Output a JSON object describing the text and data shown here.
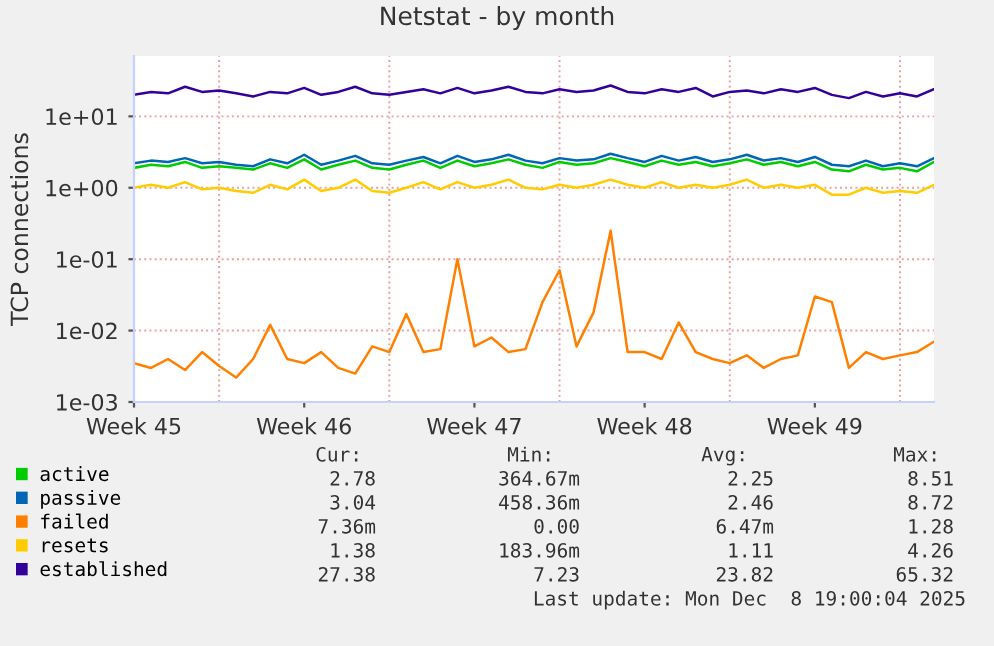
{
  "chart_data": {
    "type": "line",
    "title": "Netstat - by month",
    "ylabel": "TCP connections",
    "categories": [
      "Week 45",
      null,
      null,
      null,
      null,
      null,
      null,
      null,
      null,
      null,
      "Week 46",
      null,
      null,
      null,
      null,
      null,
      null,
      null,
      null,
      null,
      "Week 47",
      null,
      null,
      null,
      null,
      null,
      null,
      null,
      null,
      null,
      "Week 48",
      null,
      null,
      null,
      null,
      null,
      null,
      null,
      null,
      null,
      "Week 49",
      null,
      null,
      null,
      null,
      null,
      null,
      null
    ],
    "series": [
      {
        "name": "active",
        "color": "#00cc00",
        "values": [
          1.9,
          2.1,
          2.0,
          2.3,
          1.9,
          2.0,
          1.9,
          1.8,
          2.2,
          1.9,
          2.5,
          1.8,
          2.1,
          2.4,
          1.9,
          1.8,
          2.1,
          2.4,
          1.9,
          2.4,
          2.0,
          2.2,
          2.5,
          2.1,
          1.9,
          2.3,
          2.1,
          2.2,
          2.6,
          2.3,
          2.0,
          2.4,
          2.1,
          2.3,
          2.0,
          2.2,
          2.5,
          2.1,
          2.3,
          2.0,
          2.3,
          1.8,
          1.7,
          2.1,
          1.8,
          1.9,
          1.7,
          2.3
        ]
      },
      {
        "name": "passive",
        "color": "#0066b3",
        "values": [
          2.2,
          2.4,
          2.3,
          2.6,
          2.2,
          2.3,
          2.1,
          2.0,
          2.5,
          2.2,
          2.9,
          2.1,
          2.4,
          2.8,
          2.2,
          2.1,
          2.4,
          2.7,
          2.2,
          2.8,
          2.3,
          2.5,
          2.9,
          2.4,
          2.2,
          2.6,
          2.4,
          2.5,
          3.0,
          2.6,
          2.3,
          2.8,
          2.4,
          2.7,
          2.3,
          2.5,
          2.9,
          2.4,
          2.6,
          2.3,
          2.7,
          2.1,
          2.0,
          2.4,
          2.0,
          2.2,
          2.0,
          2.6
        ]
      },
      {
        "name": "failed",
        "color": "#ff8000",
        "values": [
          0.0035,
          0.003,
          0.004,
          0.0028,
          0.005,
          0.0032,
          0.0022,
          0.004,
          0.012,
          0.004,
          0.0035,
          0.005,
          0.003,
          0.0025,
          0.006,
          0.005,
          0.017,
          0.005,
          0.0055,
          0.1,
          0.006,
          0.008,
          0.005,
          0.0055,
          0.025,
          0.07,
          0.006,
          0.018,
          0.25,
          0.005,
          0.005,
          0.004,
          0.013,
          0.005,
          0.004,
          0.0035,
          0.0045,
          0.003,
          0.004,
          0.0045,
          0.03,
          0.025,
          0.003,
          0.005,
          0.004,
          0.0045,
          0.005,
          0.007
        ]
      },
      {
        "name": "resets",
        "color": "#ffcc00",
        "values": [
          1.0,
          1.1,
          1.0,
          1.2,
          0.95,
          1.0,
          0.9,
          0.85,
          1.1,
          0.95,
          1.3,
          0.9,
          1.0,
          1.3,
          0.9,
          0.85,
          1.0,
          1.2,
          0.95,
          1.2,
          1.0,
          1.1,
          1.3,
          1.0,
          0.95,
          1.1,
          1.0,
          1.1,
          1.3,
          1.1,
          1.0,
          1.2,
          1.0,
          1.1,
          1.0,
          1.1,
          1.3,
          1.0,
          1.1,
          1.0,
          1.1,
          0.8,
          0.8,
          1.0,
          0.85,
          0.9,
          0.85,
          1.1
        ]
      },
      {
        "name": "established",
        "color": "#330099",
        "values": [
          20,
          22,
          21,
          26,
          22,
          23,
          21,
          19,
          22,
          21,
          25,
          20,
          22,
          26,
          21,
          20,
          22,
          24,
          21,
          25,
          21,
          23,
          26,
          22,
          21,
          24,
          22,
          23,
          27,
          22,
          21,
          24,
          22,
          25,
          19,
          22,
          23,
          21,
          24,
          22,
          25,
          20,
          18,
          22,
          19,
          21,
          19,
          24
        ]
      }
    ],
    "log": true,
    "ylim": [
      0.001,
      70
    ],
    "yticks": [
      {
        "value": 0.001,
        "label": "1e-03"
      },
      {
        "value": 0.01,
        "label": "1e-02"
      },
      {
        "value": 0.1,
        "label": "1e-01"
      },
      {
        "value": 1,
        "label": "1e+00"
      },
      {
        "value": 10,
        "label": "1e+01"
      }
    ],
    "grid": true,
    "legend": "bottom left",
    "marker": "none",
    "line_style": "solid",
    "annotations": [
      "Cur:",
      "Min:",
      "Avg:",
      "Max:",
      "2.78",
      "364.67m",
      "2.25",
      "8.51",
      "3.04",
      "458.36m",
      "2.46",
      "8.72",
      "7.36m",
      "0.00",
      "6.47m",
      "1.28",
      "1.38",
      "183.96m",
      "1.11",
      "4.26",
      "27.38",
      "7.23",
      "23.82",
      "65.32",
      "Last update: Mon Dec  8 19:00:04 2025"
    ]
  }
}
